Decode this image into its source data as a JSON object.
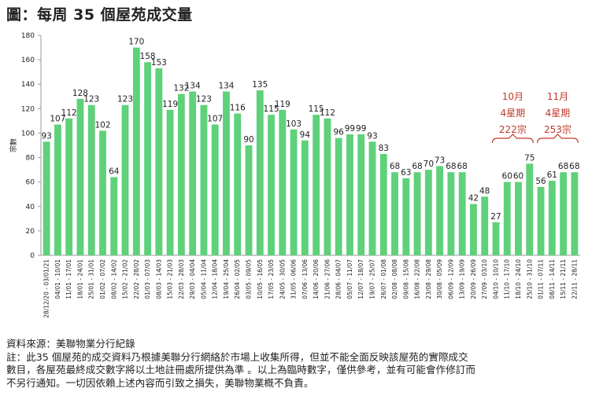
{
  "title": "圖：每周 35 個屋苑成交量",
  "chart_data": {
    "type": "bar",
    "ylabel": "宗數",
    "ylim": [
      0,
      180
    ],
    "yticks": [
      0,
      20,
      40,
      60,
      80,
      100,
      120,
      140,
      160,
      180
    ],
    "grid": false,
    "bar_color": "#5ed17a",
    "categories": [
      "28/12/20 - 03/01/21",
      "04/01 - 10/01",
      "11/01 - 17/01",
      "18/01 - 24/01",
      "25/01 - 31/01",
      "01/02 - 07/02",
      "08/02 - 14/02",
      "15/02 - 21/02",
      "22/02 - 28/02",
      "01/03 - 07/03",
      "08/03 - 14/03",
      "15/03 - 21/03",
      "22/03 - 28/03",
      "29/03 - 04/04",
      "05/04 - 11/04",
      "12/04 - 18/04",
      "19/04 - 25/04",
      "26/04 - 02/05",
      "03/05 - 09/05",
      "10/05 - 16/05",
      "17/05 - 23/05",
      "24/05 - 30/05",
      "31/05 - 06/06",
      "07/06 - 13/06",
      "14/06 - 20/06",
      "21/06 - 27/06",
      "28/06 - 04/07",
      "05/07 - 11/07",
      "12/07 - 18/07",
      "19/07 - 25/07",
      "26/07 - 01/08",
      "02/08 - 08/08",
      "09/08 - 15/08",
      "16/08 - 22/08",
      "23/08 - 29/08",
      "30/08 - 05/09",
      "06/09 - 12/09",
      "13/09 - 19/09",
      "20/09 - 26/09",
      "27/09 - 03/10",
      "04/10 - 10/10",
      "11/10 - 17/10",
      "18/10 - 24/10",
      "25/10 - 31/10",
      "01/11 - 07/11",
      "08/11 - 14/11",
      "15/11 - 21/11",
      "22/11 - 28/11"
    ],
    "values": [
      93,
      107,
      112,
      128,
      123,
      102,
      64,
      123,
      170,
      158,
      153,
      119,
      132,
      134,
      123,
      107,
      134,
      116,
      90,
      135,
      115,
      119,
      103,
      94,
      115,
      112,
      96,
      99,
      99,
      93,
      83,
      68,
      63,
      68,
      70,
      73,
      68,
      68,
      42,
      48,
      27,
      60,
      60,
      75,
      56,
      61,
      68,
      68
    ],
    "annotations": [
      {
        "lines": [
          "10月",
          "4星期",
          "222宗"
        ],
        "from_index": 40,
        "to_index": 43
      },
      {
        "lines": [
          "11月",
          "4星期",
          "253宗"
        ],
        "from_index": 44,
        "to_index": 47
      }
    ]
  },
  "notes": {
    "source": "資料來源：美聯物業分行紀錄",
    "line1": "註：此35 個屋苑的成交資料乃根據美聯分行網絡於市場上收集所得，但並不能全面反映該屋苑的實際成交",
    "line2": "數目，各屋苑最終成交數字將以土地註冊處所提供為準 。以上為臨時數字，僅供參考，並有可能會作修訂而",
    "line3": "不另行通知。一切因依賴上述內容而引致之損失，美聯物業概不負責。"
  }
}
